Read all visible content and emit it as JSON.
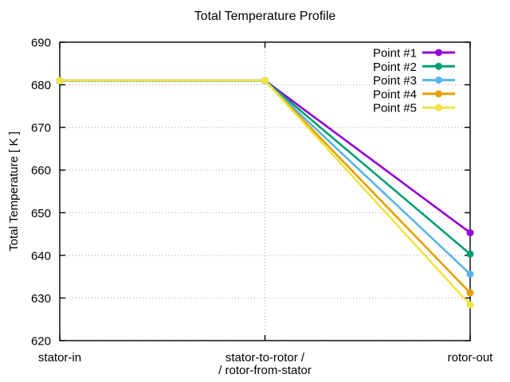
{
  "chart_data": {
    "type": "line",
    "title": "Total Temperature Profile",
    "ylabel": "Total Temperature [ K ]",
    "xlabel": "",
    "ylim": [
      620,
      690
    ],
    "ytick_step": 10,
    "grid": true,
    "legend_position": "top-right-inside",
    "categories": [
      "stator-in",
      "stator-to-rotor / / rotor-from-stator",
      "rotor-out"
    ],
    "x_tick_labels": [
      {
        "line1": "stator-in",
        "line2": ""
      },
      {
        "line1": "stator-to-rotor /",
        "line2": "/ rotor-from-stator"
      },
      {
        "line1": "rotor-out",
        "line2": ""
      }
    ],
    "series": [
      {
        "name": "Point #1",
        "color": "#9400d3",
        "values": [
          681.0,
          681.0,
          645.3
        ]
      },
      {
        "name": "Point #2",
        "color": "#009e73",
        "values": [
          681.0,
          681.0,
          640.3
        ]
      },
      {
        "name": "Point #3",
        "color": "#56b4e9",
        "values": [
          680.9,
          680.9,
          635.6
        ]
      },
      {
        "name": "Point #4",
        "color": "#e69f00",
        "values": [
          681.0,
          681.0,
          631.2
        ]
      },
      {
        "name": "Point #5",
        "color": "#f0e442",
        "values": [
          681.0,
          681.0,
          628.4
        ]
      }
    ],
    "grid_color": "#b3b3b3",
    "border_color": "#000000"
  }
}
